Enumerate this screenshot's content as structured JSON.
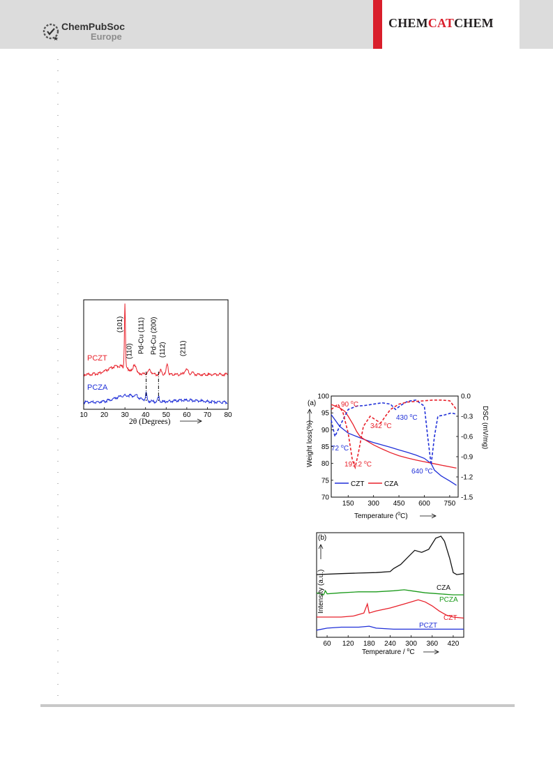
{
  "header": {
    "publisher_name": "ChemPubSoc",
    "publisher_region": "Europe",
    "journal_part1": "CHEM",
    "journal_part2": "CAT",
    "journal_part3": "CHEM",
    "colors": {
      "header_bg": "#dcdcdc",
      "journal_red": "#d91e2b",
      "journal_dark": "#231f20"
    }
  },
  "chart_data": [
    {
      "type": "line",
      "xlabel": "2θ (Degrees)",
      "ylabel": "",
      "xlim": [
        10,
        80
      ],
      "xticks": [
        10,
        20,
        30,
        40,
        50,
        60,
        70,
        80
      ],
      "series": [
        {
          "name": "PCZT",
          "color": "#e8202a"
        },
        {
          "name": "PCZA",
          "color": "#1f2fd8"
        }
      ],
      "annotations": [
        "(101)",
        "(110)",
        "Pd-Cu (111)",
        "Pd-Cu (200)",
        "(112)",
        "(211)"
      ],
      "annotation_x": [
        30,
        34.5,
        40.3,
        46.3,
        50.5,
        60.5
      ],
      "dashed_lines_x": [
        40.3,
        46.3
      ]
    },
    {
      "type": "line",
      "panel_label": "(a)",
      "xlabel": "Temperature (°C)",
      "xlabel_text": "Temperature (",
      "xlabel_sup": "0",
      "xlabel_tail": "C)",
      "ylabel": "Weight loss(%)",
      "y2label": "DSC (mV/mg)",
      "xlim": [
        50,
        800
      ],
      "ylim": [
        70,
        100
      ],
      "y2lim": [
        -1.5,
        0.0
      ],
      "xticks": [
        150,
        300,
        450,
        600,
        750
      ],
      "yticks": [
        70,
        75,
        80,
        85,
        90,
        95,
        100
      ],
      "y2ticks": [
        "0.0",
        "-0.3",
        "-0.6",
        "-0.9",
        "-1.2",
        "-1.5"
      ],
      "series": [
        {
          "name": "CZT",
          "color": "#1f2fd8",
          "axis": "left",
          "x": [
            50,
            100,
            150,
            200,
            250,
            300,
            350,
            400,
            450,
            500,
            550,
            600,
            640,
            660,
            700,
            750,
            790
          ],
          "y": [
            94.5,
            91.0,
            89.0,
            88.0,
            87.0,
            86.2,
            85.5,
            84.8,
            84.0,
            83.3,
            82.5,
            81.5,
            80.0,
            78.0,
            76.3,
            74.8,
            73.5
          ]
        },
        {
          "name": "CZA",
          "color": "#e8202a",
          "axis": "left",
          "x": [
            50,
            100,
            130,
            150,
            180,
            200,
            220,
            250,
            300,
            350,
            400,
            450,
            500,
            550,
            600,
            650,
            700,
            750,
            790
          ],
          "y": [
            97.5,
            96.5,
            95.5,
            94.0,
            91.5,
            89.5,
            88.0,
            87.0,
            85.5,
            84.3,
            83.2,
            82.3,
            81.6,
            81.0,
            80.5,
            80.0,
            79.5,
            79.0,
            78.6
          ]
        },
        {
          "name": "CZT DSC",
          "color": "#1f2fd8",
          "axis": "right",
          "dashed": true,
          "x": [
            50,
            72,
            100,
            150,
            200,
            250,
            300,
            350,
            400,
            430,
            460,
            500,
            550,
            600,
            620,
            640,
            660,
            680,
            720,
            760,
            790
          ],
          "y": [
            -0.36,
            -0.6,
            -0.45,
            -0.2,
            -0.15,
            -0.14,
            -0.12,
            -0.1,
            -0.12,
            -0.2,
            -0.14,
            -0.08,
            -0.06,
            -0.15,
            -0.6,
            -1.02,
            -0.6,
            -0.3,
            -0.28,
            -0.25,
            -0.27
          ]
        },
        {
          "name": "CZA DSC",
          "color": "#e8202a",
          "axis": "right",
          "dashed": true,
          "x": [
            50,
            90,
            120,
            150,
            175,
            191.2,
            210,
            240,
            280,
            310,
            342,
            370,
            400,
            450,
            500,
            550,
            600,
            650,
            700,
            750,
            790
          ],
          "y": [
            -0.2,
            -0.12,
            -0.25,
            -0.55,
            -0.95,
            -1.06,
            -0.85,
            -0.45,
            -0.3,
            -0.35,
            -0.4,
            -0.3,
            -0.2,
            -0.12,
            -0.09,
            -0.08,
            -0.07,
            -0.06,
            -0.06,
            -0.07,
            -0.2
          ]
        }
      ],
      "annotations": [
        {
          "text": "90 ",
          "sup": "o",
          "tail": "C",
          "color": "#e8202a"
        },
        {
          "text": "72 ",
          "sup": "o",
          "tail": "C",
          "color": "#1f2fd8"
        },
        {
          "text": "191.2 ",
          "sup": "o",
          "tail": "C",
          "color": "#e8202a"
        },
        {
          "text": "342 ",
          "sup": "o",
          "tail": "C",
          "color": "#e8202a"
        },
        {
          "text": "430 ",
          "sup": "o",
          "tail": "C",
          "color": "#1f2fd8"
        },
        {
          "text": "640 ",
          "sup": "o",
          "tail": "C",
          "color": "#1f2fd8"
        }
      ],
      "legend": "bottom-left"
    },
    {
      "type": "line",
      "panel_label": "(b)",
      "xlabel": "Temperature / °C",
      "xlabel_text": "Temperature / ",
      "xlabel_sup": "o",
      "xlabel_tail": "C",
      "ylabel": "Intensity (a.u.)",
      "xlim": [
        30,
        450
      ],
      "xticks": [
        60,
        120,
        180,
        240,
        300,
        360,
        420
      ],
      "series": [
        {
          "name": "CZA",
          "color": "#111111",
          "x": [
            30,
            100,
            150,
            200,
            240,
            250,
            270,
            290,
            310,
            330,
            350,
            370,
            385,
            395,
            410,
            420,
            430,
            450
          ],
          "y": [
            0.62,
            0.63,
            0.635,
            0.64,
            0.65,
            0.68,
            0.72,
            0.79,
            0.86,
            0.84,
            0.87,
            0.98,
            1.0,
            0.95,
            0.78,
            0.64,
            0.62,
            0.63
          ]
        },
        {
          "name": "PCZA",
          "color": "#1a9a1a",
          "x": [
            30,
            50,
            55,
            60,
            100,
            150,
            200,
            250,
            280,
            300,
            340,
            380,
            420,
            450
          ],
          "y": [
            0.44,
            0.42,
            0.46,
            0.43,
            0.44,
            0.45,
            0.45,
            0.46,
            0.47,
            0.46,
            0.44,
            0.43,
            0.42,
            0.42
          ]
        },
        {
          "name": "CZT",
          "color": "#e8202a",
          "x": [
            30,
            100,
            135,
            165,
            175,
            180,
            200,
            240,
            280,
            320,
            340,
            360,
            380,
            400,
            420,
            450
          ],
          "y": [
            0.2,
            0.2,
            0.21,
            0.24,
            0.33,
            0.24,
            0.26,
            0.29,
            0.33,
            0.37,
            0.35,
            0.31,
            0.26,
            0.22,
            0.2,
            0.19
          ]
        },
        {
          "name": "PCZT",
          "color": "#1f2fd8",
          "x": [
            30,
            60,
            100,
            150,
            180,
            200,
            250,
            300,
            350,
            400,
            450
          ],
          "y": [
            0.07,
            0.09,
            0.1,
            0.1,
            0.11,
            0.09,
            0.08,
            0.08,
            0.08,
            0.08,
            0.08
          ]
        }
      ]
    }
  ]
}
